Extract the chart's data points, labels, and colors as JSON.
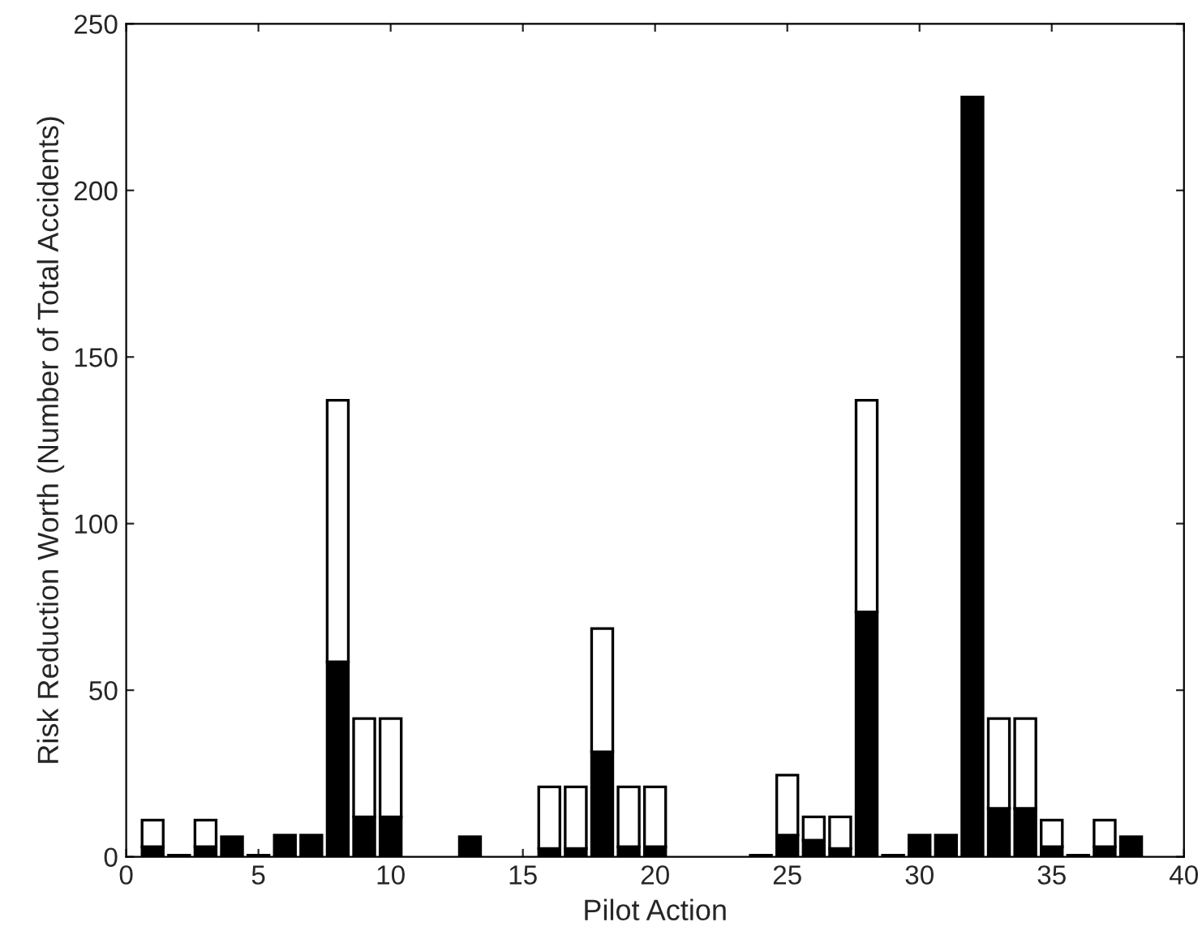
{
  "chart_data": {
    "type": "bar",
    "stacked": true,
    "xlabel": "Pilot Action",
    "ylabel": "Risk Reduction Worth (Number of Total Accidents)",
    "x": [
      1,
      2,
      3,
      4,
      5,
      6,
      7,
      8,
      9,
      10,
      13,
      16,
      17,
      18,
      19,
      20,
      24,
      25,
      26,
      27,
      28,
      29,
      30,
      31,
      32,
      33,
      34,
      35,
      36,
      37,
      38
    ],
    "series": [
      {
        "color": "#000000",
        "values": [
          3,
          0.5,
          3,
          6,
          0.5,
          6.5,
          6.5,
          58.5,
          12,
          12,
          6,
          2.5,
          2.5,
          31.5,
          3,
          3,
          0.5,
          6.5,
          5,
          2.5,
          73.5,
          0.5,
          6.5,
          6.5,
          228,
          14.5,
          14.5,
          3,
          0.5,
          3,
          6
        ]
      },
      {
        "color": "#ffffff",
        "values": [
          8,
          null,
          8,
          null,
          null,
          null,
          null,
          78.5,
          29.5,
          29.5,
          null,
          18.5,
          18.5,
          37,
          18,
          18,
          null,
          18,
          7,
          9.5,
          63.5,
          null,
          null,
          null,
          null,
          27,
          27,
          8,
          null,
          8,
          null
        ]
      }
    ],
    "xlim": [
      0,
      40
    ],
    "xticks": [
      0,
      5,
      10,
      15,
      20,
      25,
      30,
      35,
      40
    ],
    "ylim": [
      0,
      250
    ],
    "yticks": [
      0,
      50,
      100,
      150,
      200,
      250
    ],
    "grid": false,
    "legend": false
  }
}
